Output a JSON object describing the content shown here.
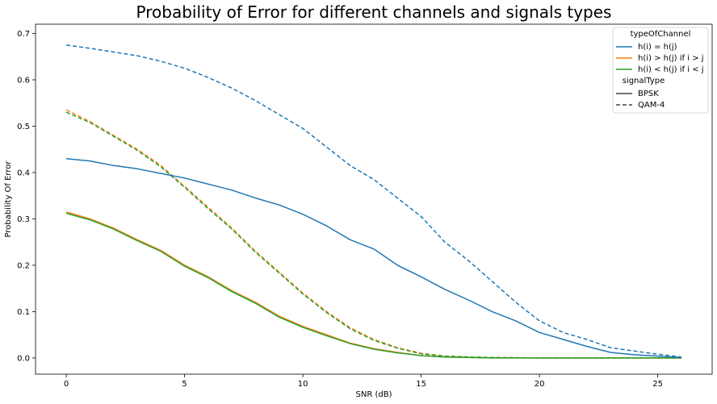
{
  "chart_data": {
    "type": "line",
    "title": "Probability of Error for different channels and signals types",
    "xlabel": "SNR (dB)",
    "ylabel": "Probability Of Error",
    "xlim": [
      -1.3,
      27.3
    ],
    "ylim": [
      -0.035,
      0.72
    ],
    "xticks": [
      0,
      5,
      10,
      15,
      20,
      25
    ],
    "yticks": [
      0.0,
      0.1,
      0.2,
      0.3,
      0.4,
      0.5,
      0.6,
      0.7
    ],
    "grid": false,
    "legend": {
      "placement": "top-right",
      "hue_title": "typeOfChannel",
      "hue_entries": [
        {
          "label": "h(i) = h(j)",
          "color": "#1f77b4"
        },
        {
          "label": "h(i) > h(j) if i > j",
          "color": "#ff7f0e"
        },
        {
          "label": "h(i) < h(j) if i < j",
          "color": "#2ca02c"
        }
      ],
      "style_title": "signalType",
      "style_entries": [
        {
          "label": "BPSK",
          "dash": "solid"
        },
        {
          "label": "QAM-4",
          "dash": "dashed"
        }
      ]
    },
    "series": [
      {
        "name": "h(i) = h(j)",
        "signal": "QAM-4",
        "color": "#1f77b4",
        "dash": "dashed",
        "x": [
          0,
          1,
          2,
          3,
          4,
          5,
          6,
          7,
          8,
          9,
          10,
          11,
          12,
          13,
          14,
          15,
          16,
          17,
          18,
          19,
          20,
          21,
          22,
          23,
          24,
          25,
          26
        ],
        "y": [
          0.675,
          0.668,
          0.66,
          0.652,
          0.64,
          0.625,
          0.605,
          0.582,
          0.555,
          0.525,
          0.495,
          0.455,
          0.415,
          0.385,
          0.345,
          0.305,
          0.25,
          0.21,
          0.165,
          0.12,
          0.08,
          0.055,
          0.04,
          0.022,
          0.015,
          0.008,
          0.002
        ]
      },
      {
        "name": "h(i) = h(j)",
        "signal": "BPSK",
        "color": "#1f77b4",
        "dash": "solid",
        "x": [
          0,
          1,
          2,
          3,
          4,
          5,
          6,
          7,
          8,
          9,
          10,
          11,
          12,
          13,
          14,
          15,
          16,
          17,
          18,
          19,
          20,
          21,
          22,
          23,
          24,
          25,
          26
        ],
        "y": [
          0.43,
          0.425,
          0.415,
          0.408,
          0.398,
          0.388,
          0.375,
          0.362,
          0.345,
          0.33,
          0.31,
          0.285,
          0.255,
          0.235,
          0.2,
          0.175,
          0.148,
          0.125,
          0.1,
          0.08,
          0.055,
          0.04,
          0.025,
          0.012,
          0.007,
          0.004,
          0.001
        ]
      },
      {
        "name": "h(i) > h(j) if i > j",
        "signal": "QAM-4",
        "color": "#ff7f0e",
        "dash": "dashed",
        "x": [
          0,
          1,
          2,
          3,
          4,
          5,
          6,
          7,
          8,
          9,
          10,
          11,
          12,
          13,
          14,
          15,
          16,
          17,
          18,
          20,
          22,
          24,
          26
        ],
        "y": [
          0.535,
          0.51,
          0.48,
          0.45,
          0.415,
          0.37,
          0.325,
          0.28,
          0.23,
          0.185,
          0.14,
          0.1,
          0.065,
          0.04,
          0.022,
          0.01,
          0.004,
          0.002,
          0.001,
          0.0,
          0.0,
          0.0,
          0.0
        ]
      },
      {
        "name": "h(i) < h(j) if i < j",
        "signal": "QAM-4",
        "color": "#2ca02c",
        "dash": "dashed",
        "x": [
          0,
          1,
          2,
          3,
          4,
          5,
          6,
          7,
          8,
          9,
          10,
          11,
          12,
          13,
          14,
          15,
          16,
          17,
          18,
          20,
          22,
          24,
          26
        ],
        "y": [
          0.53,
          0.508,
          0.478,
          0.448,
          0.412,
          0.368,
          0.322,
          0.278,
          0.228,
          0.183,
          0.138,
          0.098,
          0.063,
          0.038,
          0.021,
          0.009,
          0.004,
          0.002,
          0.001,
          0.0,
          0.0,
          0.0,
          0.0
        ]
      },
      {
        "name": "h(i) > h(j) if i > j",
        "signal": "BPSK",
        "color": "#ff7f0e",
        "dash": "solid",
        "x": [
          0,
          1,
          2,
          3,
          4,
          5,
          6,
          7,
          8,
          9,
          10,
          11,
          12,
          13,
          14,
          15,
          16,
          17,
          18,
          20,
          22,
          24,
          26
        ],
        "y": [
          0.315,
          0.3,
          0.28,
          0.255,
          0.232,
          0.2,
          0.175,
          0.145,
          0.12,
          0.09,
          0.068,
          0.05,
          0.032,
          0.02,
          0.012,
          0.005,
          0.002,
          0.001,
          0.0,
          0.0,
          0.0,
          0.0,
          0.0
        ]
      },
      {
        "name": "h(i) < h(j) if i < j",
        "signal": "BPSK",
        "color": "#2ca02c",
        "dash": "solid",
        "x": [
          0,
          1,
          2,
          3,
          4,
          5,
          6,
          7,
          8,
          9,
          10,
          11,
          12,
          13,
          14,
          15,
          16,
          17,
          18,
          20,
          22,
          24,
          26
        ],
        "y": [
          0.312,
          0.298,
          0.278,
          0.253,
          0.23,
          0.198,
          0.173,
          0.143,
          0.118,
          0.088,
          0.066,
          0.048,
          0.031,
          0.019,
          0.011,
          0.005,
          0.002,
          0.001,
          0.0,
          0.0,
          0.0,
          0.0,
          0.0
        ]
      }
    ]
  }
}
